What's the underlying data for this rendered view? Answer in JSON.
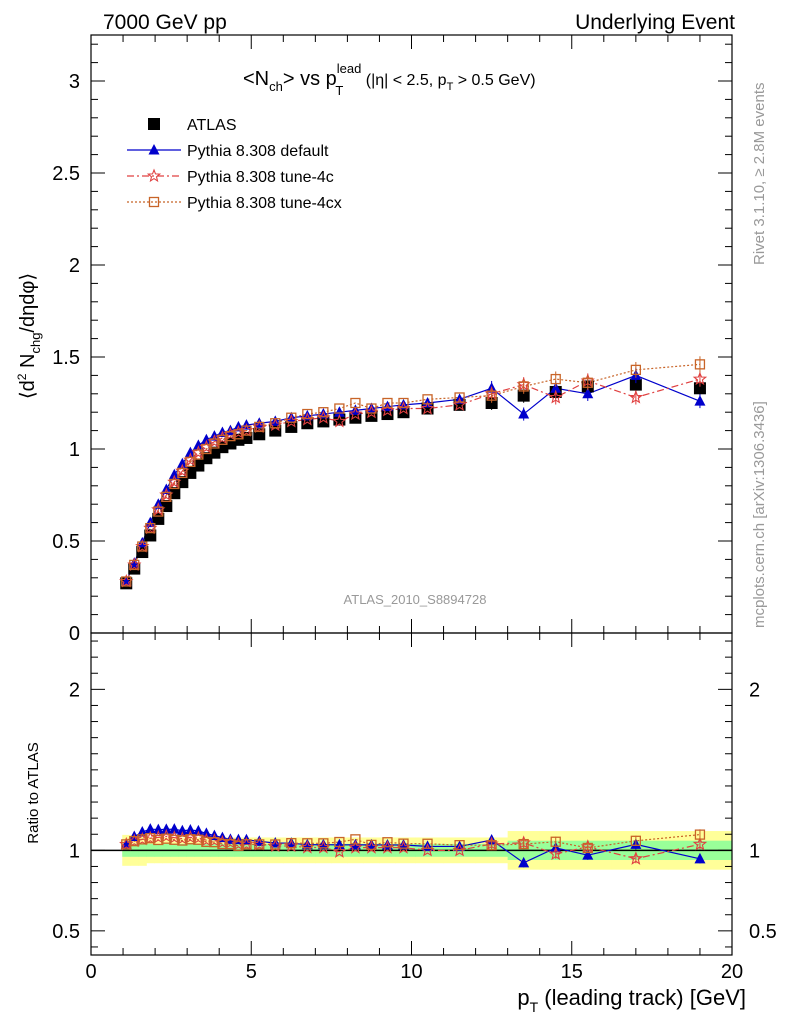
{
  "header": {
    "left": "7000 GeV pp",
    "right": "Underlying Event"
  },
  "side_labels": {
    "rivet": "Rivet 3.1.10, ≥ 2.8M events",
    "mcplots": "mcplots.cern.ch [arXiv:1306.3436]"
  },
  "chart_data": {
    "type": "scatter",
    "title_parts": {
      "main": "<N",
      "ch_sub": "ch",
      "vs": "> vs p",
      "lead_sup": "lead",
      "T_sub": "T",
      "cuts_a": " (|η| < 2.5, p",
      "cuts_T": "T",
      "cuts_b": " > 0.5 GeV)"
    },
    "analysis_label": "ATLAS_2010_S8894728",
    "xlabel_parts": {
      "p": "p",
      "T": "T",
      "rest": " (leading track) [GeV]"
    },
    "ylabel_top": "⟨d² N_chg/dηdφ⟩",
    "ylabel_bottom": "Ratio to ATLAS",
    "xlim": [
      0,
      20
    ],
    "ylim_top": [
      0,
      3.25
    ],
    "ylim_bottom": [
      0.35,
      2.35
    ],
    "x_ticks": [
      "0",
      "5",
      "10",
      "15",
      "20"
    ],
    "y_ticks_top": [
      "0",
      "0.5",
      "1",
      "1.5",
      "2",
      "2.5",
      "3"
    ],
    "y_ticks_bottom": [
      "0.5",
      "1",
      "2"
    ],
    "legend_position": "top-left",
    "x": [
      1.1,
      1.35,
      1.6,
      1.85,
      2.1,
      2.35,
      2.6,
      2.85,
      3.1,
      3.35,
      3.6,
      3.85,
      4.1,
      4.35,
      4.6,
      4.85,
      5.25,
      5.75,
      6.25,
      6.75,
      7.25,
      7.75,
      8.25,
      8.75,
      9.25,
      9.75,
      10.5,
      11.5,
      12.5,
      13.5,
      14.5,
      15.5,
      17.0,
      19.0
    ],
    "series": [
      {
        "name": "ATLAS",
        "color": "#000000",
        "marker": "filled-square",
        "y": [
          0.27,
          0.35,
          0.44,
          0.53,
          0.62,
          0.69,
          0.76,
          0.82,
          0.87,
          0.91,
          0.95,
          0.98,
          1.01,
          1.03,
          1.05,
          1.06,
          1.08,
          1.1,
          1.12,
          1.14,
          1.15,
          1.16,
          1.17,
          1.18,
          1.19,
          1.2,
          1.22,
          1.24,
          1.25,
          1.29,
          1.31,
          1.34,
          1.35,
          1.33
        ]
      },
      {
        "name": "Pythia 8.308 default",
        "color": "#0000cc",
        "marker": "filled-triangle",
        "line": "solid",
        "y": [
          0.28,
          0.38,
          0.49,
          0.6,
          0.7,
          0.78,
          0.86,
          0.92,
          0.98,
          1.02,
          1.05,
          1.07,
          1.09,
          1.1,
          1.12,
          1.13,
          1.14,
          1.15,
          1.17,
          1.18,
          1.19,
          1.2,
          1.21,
          1.22,
          1.23,
          1.24,
          1.25,
          1.27,
          1.33,
          1.19,
          1.33,
          1.3,
          1.4,
          1.26
        ]
      },
      {
        "name": "Pythia 8.308 tune-4c",
        "color": "#e04040",
        "marker": "star",
        "line": "dashdot",
        "y": [
          0.28,
          0.37,
          0.47,
          0.57,
          0.67,
          0.75,
          0.82,
          0.88,
          0.94,
          0.98,
          1.01,
          1.04,
          1.06,
          1.08,
          1.09,
          1.1,
          1.12,
          1.13,
          1.15,
          1.16,
          1.17,
          1.15,
          1.19,
          1.2,
          1.21,
          1.22,
          1.22,
          1.24,
          1.3,
          1.35,
          1.28,
          1.37,
          1.28,
          1.38
        ]
      },
      {
        "name": "Pythia 8.308 tune-4cx",
        "color": "#c86428",
        "marker": "open-square",
        "line": "dotted",
        "y": [
          0.28,
          0.37,
          0.47,
          0.57,
          0.66,
          0.74,
          0.81,
          0.87,
          0.93,
          0.97,
          1.0,
          1.03,
          1.05,
          1.07,
          1.08,
          1.1,
          1.12,
          1.14,
          1.17,
          1.19,
          1.2,
          1.22,
          1.25,
          1.22,
          1.25,
          1.25,
          1.27,
          1.28,
          1.29,
          1.34,
          1.38,
          1.36,
          1.43,
          1.46
        ]
      }
    ],
    "ratio_band_green_halfwidth": 0.04,
    "ratio_band_yellow_halfwidth": 0.08
  }
}
